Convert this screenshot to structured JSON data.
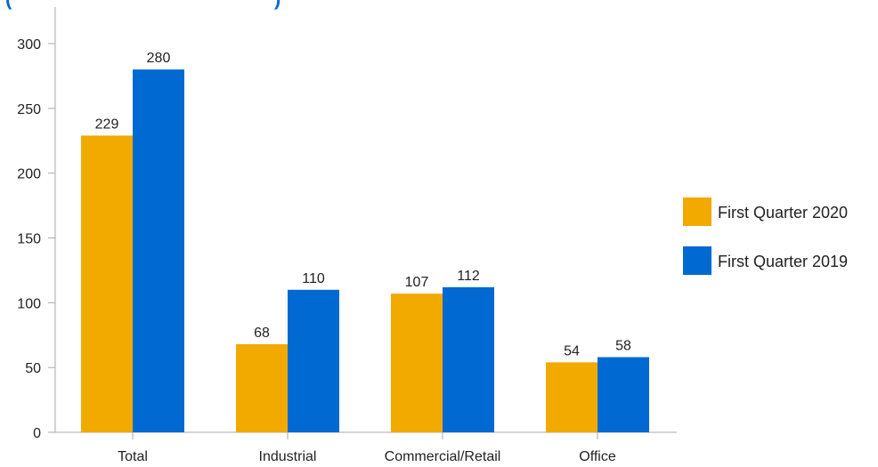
{
  "chart_data": {
    "type": "bar",
    "title_fragment_left": "(",
    "title_fragment_right": ")",
    "categories": [
      "Total",
      "Industrial",
      "Commercial/Retail",
      "Office"
    ],
    "series": [
      {
        "name": "First Quarter 2020",
        "color": "#F2A900",
        "values": [
          229,
          68,
          107,
          54
        ]
      },
      {
        "name": "First Quarter 2019",
        "color": "#0069D2",
        "values": [
          280,
          110,
          112,
          58
        ]
      }
    ],
    "ylim": [
      0,
      300
    ],
    "yticks": [
      0,
      50,
      100,
      150,
      200,
      250,
      300
    ],
    "grid": false,
    "legend_position": "right",
    "title_color": "#0069D2",
    "axis_color": "#AAAAAA"
  }
}
